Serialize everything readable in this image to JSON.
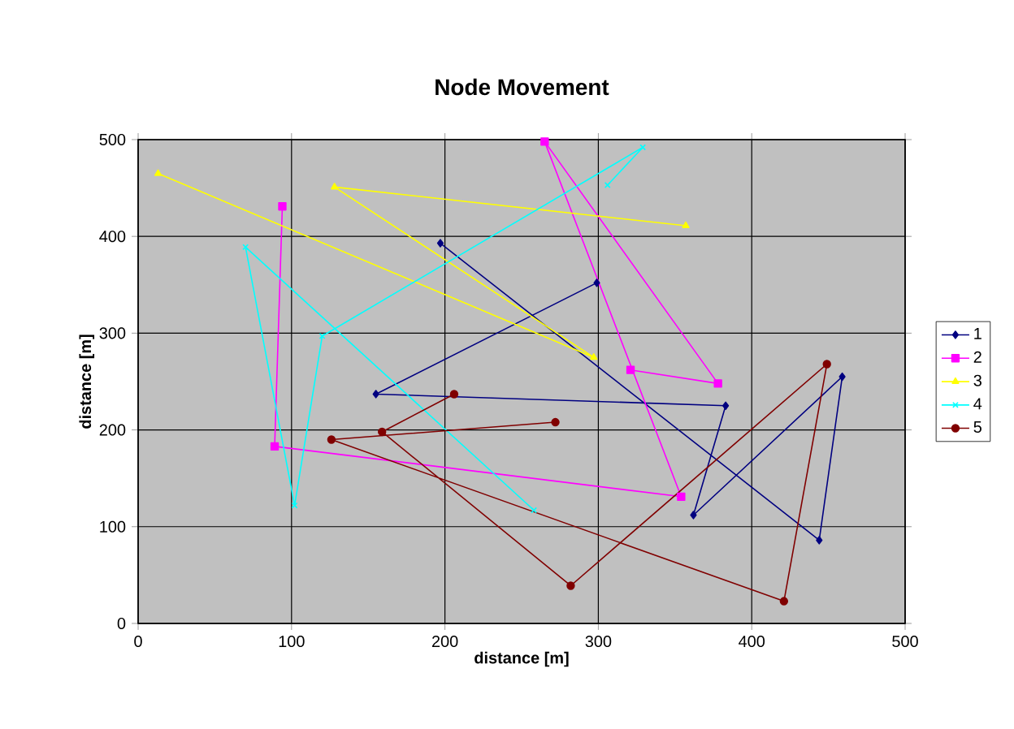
{
  "chart_data": {
    "type": "line",
    "title": "Node Movement",
    "xlabel": "distance [m]",
    "ylabel": "distance [m]",
    "xlim": [
      0,
      500
    ],
    "ylim": [
      0,
      500
    ],
    "xticks": [
      0,
      100,
      200,
      300,
      400,
      500
    ],
    "yticks": [
      0,
      100,
      200,
      300,
      400,
      500
    ],
    "grid": true,
    "legend": "right",
    "series": [
      {
        "name": "1",
        "color": "#000080",
        "marker": "diamond",
        "x": [
          197,
          444,
          459,
          362,
          383,
          155,
          299
        ],
        "values": [
          393,
          86,
          255,
          112,
          225,
          237,
          352
        ]
      },
      {
        "name": "2",
        "color": "#ff00ff",
        "marker": "square",
        "x": [
          94,
          89,
          354,
          265,
          378,
          321
        ],
        "values": [
          431,
          183,
          131,
          498,
          248,
          262
        ]
      },
      {
        "name": "3",
        "color": "#ffff00",
        "marker": "triangle",
        "x": [
          13,
          297,
          128,
          357
        ],
        "values": [
          465,
          275,
          451,
          411
        ]
      },
      {
        "name": "4",
        "color": "#00ffff",
        "marker": "cross",
        "x": [
          258,
          70,
          102,
          120,
          329,
          306
        ],
        "values": [
          117,
          389,
          122,
          297,
          492,
          453
        ]
      },
      {
        "name": "5",
        "color": "#800000",
        "marker": "circle",
        "x": [
          272,
          126,
          421,
          449,
          282,
          159,
          206
        ],
        "values": [
          208,
          190,
          23,
          268,
          39,
          198,
          237
        ]
      }
    ]
  }
}
